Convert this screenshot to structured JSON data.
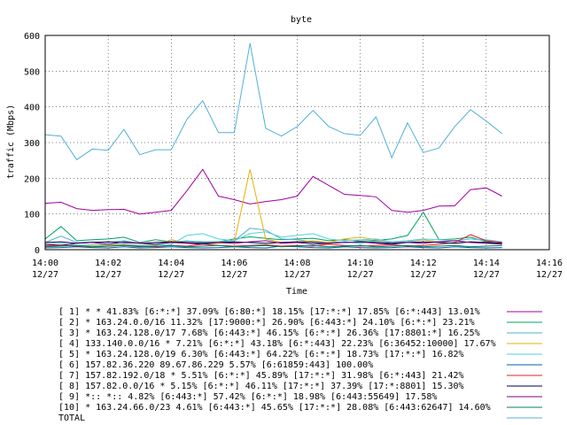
{
  "chart_data": {
    "type": "line",
    "title": "byte",
    "xlabel": "Time",
    "ylabel": "traffic (Mbps)",
    "ylim": [
      0,
      600
    ],
    "y_ticks": [
      0,
      100,
      200,
      300,
      400,
      500,
      600
    ],
    "xlim": [
      "12/27 14:00",
      "12/27 14:16"
    ],
    "x_ticks": [
      {
        "time": "14:00",
        "date": "12/27"
      },
      {
        "time": "14:02",
        "date": "12/27"
      },
      {
        "time": "14:04",
        "date": "12/27"
      },
      {
        "time": "14:06",
        "date": "12/27"
      },
      {
        "time": "14:08",
        "date": "12/27"
      },
      {
        "time": "14:10",
        "date": "12/27"
      },
      {
        "time": "14:12",
        "date": "12/27"
      },
      {
        "time": "14:14",
        "date": "12/27"
      },
      {
        "time": "14:16",
        "date": "12/27"
      }
    ],
    "grid": true,
    "legend_position": "bottom",
    "x": [
      "14:00",
      "14:00:30",
      "14:01",
      "14:01:30",
      "14:02",
      "14:02:30",
      "14:03",
      "14:03:30",
      "14:04",
      "14:04:30",
      "14:05",
      "14:05:30",
      "14:06",
      "14:06:30",
      "14:07",
      "14:07:30",
      "14:08",
      "14:08:30",
      "14:09",
      "14:09:30",
      "14:10",
      "14:10:30",
      "14:11",
      "14:11:30",
      "14:12",
      "14:12:30",
      "14:13",
      "14:13:30",
      "14:14",
      "14:14:30"
    ],
    "series": [
      {
        "name": "[ 1] * * 41.83%  [6:*:*] 37.09% [6:80:*] 18.15% [17:*:*] 17.85% [6:*:443] 13.01%",
        "color": "#a000a0",
        "values": [
          130,
          133,
          115,
          110,
          112,
          113,
          100,
          105,
          110,
          165,
          225,
          150,
          140,
          128,
          135,
          140,
          150,
          205,
          180,
          155,
          152,
          148,
          110,
          105,
          110,
          122,
          123,
          168,
          173,
          150
        ]
      },
      {
        "name": "[ 2] * 163.24.0.0/16 11.32%  [17:9000:*] 26.90% [6:443:*] 24.10% [6:*:*] 23.21%",
        "color": "#00a060",
        "values": [
          30,
          65,
          25,
          28,
          30,
          35,
          20,
          28,
          22,
          24,
          22,
          22,
          30,
          36,
          32,
          28,
          30,
          32,
          25,
          28,
          24,
          26,
          30,
          40,
          105,
          28,
          30,
          35,
          22,
          22
        ]
      },
      {
        "name": "[ 3] * 163.24.128.0/17 7.68%  [6:443:*] 46.15% [6:*:*] 26.36% [17:8801:*] 16.25%",
        "color": "#50b0d0",
        "values": [
          20,
          38,
          20,
          22,
          20,
          25,
          18,
          20,
          22,
          24,
          20,
          22,
          25,
          60,
          55,
          30,
          28,
          22,
          20,
          22,
          18,
          24,
          20,
          22,
          28,
          22,
          25,
          30,
          25,
          22
        ]
      },
      {
        "name": "[ 4] 133.140.0.0/16 * 7.21%  [6:*:*] 43.18% [6:*:443] 22.23% [6:36452:10000] 17.67%",
        "color": "#e8b000",
        "values": [
          12,
          14,
          10,
          12,
          12,
          15,
          10,
          12,
          28,
          18,
          15,
          18,
          20,
          225,
          30,
          20,
          22,
          25,
          20,
          30,
          35,
          28,
          22,
          25,
          28,
          20,
          18,
          22,
          20,
          18
        ]
      },
      {
        "name": "[ 5] * 163.24.128.0/19 6.30%  [6:443:*] 64.22% [6:*:*] 18.73% [17:*:*] 16.82%",
        "color": "#50d0e0",
        "values": [
          15,
          18,
          12,
          14,
          15,
          16,
          12,
          14,
          15,
          40,
          45,
          30,
          25,
          45,
          50,
          35,
          40,
          45,
          30,
          25,
          28,
          30,
          22,
          25,
          30,
          28,
          25,
          30,
          28,
          22
        ]
      },
      {
        "name": "[ 6] 157.82.36.220 89.67.86.229 5.57%  [6:61859:443] 100.00%",
        "color": "#0060a0",
        "values": [
          5,
          6,
          8,
          6,
          5,
          8,
          5,
          6,
          8,
          6,
          5,
          6,
          8,
          6,
          5,
          10,
          8,
          6,
          5,
          8,
          6,
          5,
          6,
          8,
          6,
          5,
          8,
          6,
          5,
          6
        ]
      },
      {
        "name": "[ 7] 157.82.192.0/18 * 5.51%  [6:*:*] 45.89% [17:*:*] 31.98% [6:*:443] 21.42%",
        "color": "#e02020",
        "values": [
          10,
          12,
          10,
          8,
          10,
          12,
          10,
          8,
          12,
          10,
          15,
          12,
          10,
          12,
          14,
          10,
          12,
          10,
          15,
          12,
          10,
          12,
          14,
          10,
          12,
          15,
          20,
          42,
          25,
          20
        ]
      },
      {
        "name": "[ 8] 157.82.0.0/16 * 5.15%  [6:*:*] 46.11% [17:*:*] 37.39% [17:*:8801] 15.30%",
        "color": "#000050",
        "values": [
          20,
          22,
          18,
          20,
          22,
          20,
          18,
          20,
          22,
          20,
          18,
          20,
          22,
          20,
          18,
          20,
          22,
          20,
          18,
          20,
          22,
          20,
          18,
          20,
          22,
          20,
          18,
          22,
          20,
          18
        ]
      },
      {
        "name": "[ 9] *:: *:: 4.82%  [6:443:*] 57.42% [6:*:*] 18.98% [6:443:55649] 17.58%",
        "color": "#800080",
        "values": [
          15,
          12,
          18,
          20,
          15,
          22,
          18,
          15,
          20,
          18,
          15,
          20,
          18,
          22,
          25,
          18,
          20,
          15,
          18,
          20,
          22,
          18,
          15,
          20,
          18,
          22,
          25,
          20,
          18,
          15
        ]
      },
      {
        "name": "[10] * 163.24.66.0/23 4.61%  [6:443:*] 45.65% [17:*:*] 28.08% [6:443:62647] 14.60%",
        "color": "#008060",
        "values": [
          8,
          10,
          12,
          8,
          10,
          12,
          8,
          10,
          12,
          8,
          10,
          12,
          8,
          10,
          12,
          8,
          10,
          12,
          8,
          10,
          12,
          8,
          10,
          12,
          8,
          10,
          12,
          8,
          10,
          12
        ]
      },
      {
        "name": "TOTAL",
        "color": "#50b0d8",
        "values": [
          322,
          318,
          252,
          282,
          278,
          337,
          266,
          280,
          280,
          365,
          417,
          328,
          328,
          578,
          340,
          318,
          345,
          390,
          345,
          325,
          320,
          372,
          258,
          355,
          272,
          285,
          345,
          392,
          360,
          325
        ]
      }
    ]
  }
}
